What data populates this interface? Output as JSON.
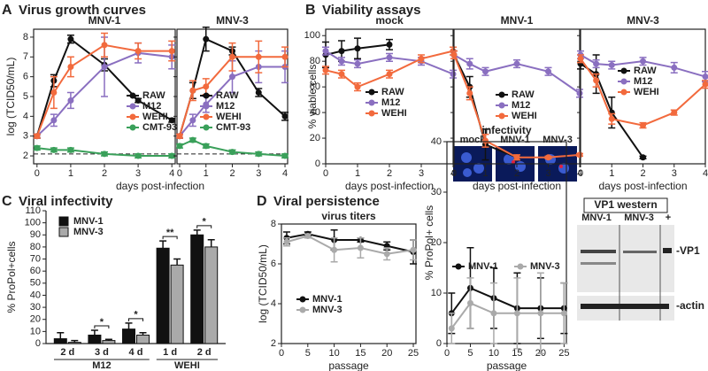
{
  "chart_data": [
    {
      "type": "line",
      "panel": "A",
      "title": "Virus growth curves",
      "subtitle": "MNV-1",
      "y_label": "log (TCID50/mL)",
      "x_label": "days post-infection",
      "x": [
        0,
        0.5,
        1,
        2,
        3,
        4
      ],
      "xlim": [
        -0.1,
        4.1
      ],
      "xticks": [
        0,
        1,
        2,
        3,
        4
      ],
      "ylim": [
        1.6,
        8.4
      ],
      "yticks": [
        2,
        3,
        4,
        5,
        6,
        7,
        8
      ],
      "hline": 2.1,
      "series": [
        {
          "name": "RAW",
          "color": "#111111",
          "values": [
            3.0,
            5.8,
            7.9,
            6.6,
            4.8,
            3.8
          ],
          "errors": [
            0.1,
            0.3,
            0.2,
            0.3,
            0.1,
            0.1
          ]
        },
        {
          "name": "M12",
          "color": "#8a6fc0",
          "values": [
            3.0,
            3.8,
            4.8,
            6.5,
            7.2,
            7.0
          ],
          "errors": [
            0.1,
            0.3,
            0.4,
            1.5,
            0.5,
            0.6
          ]
        },
        {
          "name": "WEHI",
          "color": "#f26a3d",
          "values": [
            3.0,
            5.2,
            6.5,
            7.6,
            7.3,
            7.3
          ],
          "errors": [
            0.1,
            0.8,
            0.5,
            0.6,
            0.4,
            0.5
          ]
        },
        {
          "name": "CMT-93",
          "color": "#3aa05a",
          "values": [
            2.4,
            2.3,
            2.3,
            2.1,
            2.0,
            2.0
          ],
          "errors": [
            0.1,
            0.1,
            0.1,
            0.1,
            0.1,
            0.1
          ]
        }
      ]
    },
    {
      "type": "line",
      "subtitle": "MNV-3",
      "show_ytick_labels": false,
      "x": [
        0,
        0.5,
        1,
        2,
        3,
        4
      ],
      "xlim": [
        -0.1,
        4.1
      ],
      "xticks": [
        0,
        1,
        2,
        3,
        4
      ],
      "ylim": [
        1.6,
        8.4
      ],
      "yticks": [
        2,
        3,
        4,
        5,
        6,
        7,
        8
      ],
      "hline": 2.1,
      "series": [
        {
          "name": "RAW",
          "color": "#111111",
          "values": [
            3.0,
            5.3,
            7.9,
            7.3,
            5.2,
            4.0
          ],
          "errors": [
            0.1,
            0.4,
            0.6,
            0.2,
            0.2,
            0.2
          ]
        },
        {
          "name": "M12",
          "color": "#8a6fc0",
          "values": [
            3.0,
            3.8,
            4.6,
            6.0,
            6.5,
            6.5
          ],
          "errors": [
            0.1,
            0.3,
            0.4,
            0.8,
            0.8,
            0.8
          ]
        },
        {
          "name": "WEHI",
          "color": "#f26a3d",
          "values": [
            3.0,
            5.3,
            5.5,
            7.0,
            7.0,
            7.0
          ],
          "errors": [
            0.1,
            0.5,
            0.4,
            0.7,
            0.8,
            0.5
          ]
        },
        {
          "name": "CMT-93",
          "color": "#3aa05a",
          "values": [
            2.5,
            2.8,
            2.5,
            2.2,
            2.1,
            2.0
          ],
          "errors": [
            0.1,
            0.1,
            0.1,
            0.1,
            0.1,
            0.1
          ]
        }
      ]
    },
    {
      "type": "line",
      "panel": "B",
      "title": "Viability assays",
      "subtitle": "mock",
      "y_label": "% viable cells",
      "x_label": "days post-infection",
      "x": [
        0,
        0.5,
        1,
        2,
        3,
        4
      ],
      "xlim": [
        0,
        4
      ],
      "xticks": [
        0,
        1,
        2,
        3,
        4
      ],
      "ylim": [
        0,
        105
      ],
      "yticks": [
        0,
        20,
        40,
        60,
        80,
        100
      ],
      "series": [
        {
          "name": "RAW",
          "color": "#111111",
          "values": [
            85,
            88,
            90,
            93,
            null,
            null
          ],
          "errors": [
            10,
            8,
            8,
            4,
            null,
            null
          ]
        },
        {
          "name": "M12",
          "color": "#8a6fc0",
          "values": [
            88,
            80,
            78,
            83,
            80,
            70
          ],
          "errors": [
            3,
            3,
            3,
            3,
            3,
            3
          ]
        },
        {
          "name": "WEHI",
          "color": "#f26a3d",
          "values": [
            73,
            70,
            60,
            70,
            82,
            88
          ],
          "errors": [
            3,
            3,
            3,
            3,
            3,
            3
          ]
        }
      ]
    },
    {
      "type": "line",
      "subtitle": "MNV-1",
      "x_label": "days post-infection",
      "show_ytick_labels": false,
      "x": [
        0,
        0.5,
        1,
        2,
        3,
        4
      ],
      "xlim": [
        0,
        4
      ],
      "xticks": [
        0,
        1,
        2,
        3,
        4
      ],
      "ylim": [
        0,
        105
      ],
      "yticks": [
        0,
        20,
        40,
        60,
        80,
        100
      ],
      "series": [
        {
          "name": "RAW",
          "color": "#111111",
          "values": [
            85,
            60,
            15,
            5,
            null,
            null
          ],
          "errors": [
            3,
            8,
            12,
            2,
            null,
            null
          ]
        },
        {
          "name": "M12",
          "color": "#8a6fc0",
          "values": [
            85,
            78,
            72,
            78,
            72,
            55
          ],
          "errors": [
            3,
            4,
            3,
            3,
            3,
            3
          ]
        },
        {
          "name": "WEHI",
          "color": "#f26a3d",
          "values": [
            85,
            55,
            18,
            5,
            5,
            7
          ],
          "errors": [
            3,
            5,
            5,
            2,
            1,
            1
          ]
        }
      ]
    },
    {
      "type": "line",
      "subtitle": "MNV-3",
      "x_label": "days post-infection",
      "show_ytick_labels": false,
      "x": [
        0,
        0.5,
        1,
        2,
        3,
        4
      ],
      "xlim": [
        0,
        4
      ],
      "xticks": [
        0,
        1,
        2,
        3,
        4
      ],
      "ylim": [
        0,
        105
      ],
      "yticks": [
        0,
        20,
        40,
        60,
        80,
        100
      ],
      "series": [
        {
          "name": "RAW",
          "color": "#111111",
          "values": [
            78,
            70,
            40,
            5,
            null,
            null
          ],
          "errors": [
            4,
            15,
            12,
            1,
            null,
            null
          ]
        },
        {
          "name": "M12",
          "color": "#8a6fc0",
          "values": [
            85,
            78,
            77,
            80,
            75,
            68
          ],
          "errors": [
            3,
            3,
            3,
            3,
            4,
            4
          ]
        },
        {
          "name": "WEHI",
          "color": "#f26a3d",
          "values": [
            82,
            65,
            35,
            30,
            40,
            62
          ],
          "errors": [
            3,
            5,
            4,
            2,
            2,
            3
          ]
        }
      ]
    },
    {
      "type": "bar",
      "panel": "C",
      "title": "Viral infectivity",
      "y_label": "% ProPol+cells",
      "groups": [
        {
          "name": "M12",
          "categories": [
            "2 d",
            "3 d",
            "4 d"
          ]
        },
        {
          "name": "WEHI",
          "categories": [
            "1 d",
            "2 d"
          ]
        }
      ],
      "ylim": [
        0,
        110
      ],
      "yticks": [
        0,
        10,
        20,
        30,
        40,
        50,
        60,
        70,
        80,
        90,
        100,
        110
      ],
      "series": [
        {
          "name": "MNV-1",
          "color": "#111111",
          "values": [
            4,
            7,
            12,
            79,
            90
          ],
          "errors": [
            5,
            4,
            5,
            6,
            4
          ]
        },
        {
          "name": "MNV-3",
          "color": "#aaaaaa",
          "values": [
            1,
            2.5,
            7,
            65,
            80
          ],
          "errors": [
            1.5,
            1,
            2,
            5,
            6
          ]
        }
      ],
      "significance": [
        null,
        "*",
        "*",
        "**",
        "*"
      ]
    },
    {
      "type": "line",
      "panel": "D",
      "title": "Viral persistence",
      "subtitle": "virus titers",
      "y_label": "log (TCID50/mL)",
      "x_label": "passage",
      "x": [
        1,
        5,
        10,
        15,
        20,
        25
      ],
      "xlim": [
        0,
        25.5
      ],
      "xticks": [
        0,
        5,
        10,
        15,
        20,
        25
      ],
      "ylim": [
        2,
        8
      ],
      "yticks": [
        2,
        4,
        6,
        8
      ],
      "series": [
        {
          "name": "MNV-1",
          "color": "#111111",
          "values": [
            7.3,
            7.5,
            7.2,
            7.2,
            6.9,
            6.6
          ],
          "errors": [
            0.3,
            0.1,
            0.5,
            0.1,
            0.2,
            0.6
          ]
        },
        {
          "name": "MNV-3",
          "color": "#aaaaaa",
          "values": [
            7.1,
            7.4,
            6.7,
            6.8,
            6.5,
            6.7
          ],
          "errors": [
            0.2,
            0.1,
            0.6,
            0.5,
            0.3,
            0.5
          ]
        }
      ]
    },
    {
      "type": "line",
      "subtitle": "infectivity",
      "y_label": "% ProPol+ cells",
      "x_label": "passage",
      "inset_labels": [
        "mock",
        "MNV-1",
        "MNV-3"
      ],
      "x": [
        1,
        5,
        10,
        15,
        20,
        25
      ],
      "xlim": [
        0,
        25.5
      ],
      "xticks": [
        0,
        5,
        10,
        15,
        20,
        25
      ],
      "ylim": [
        0,
        40
      ],
      "yticks": [
        0,
        10,
        20,
        30,
        40
      ],
      "series": [
        {
          "name": "MNV-1",
          "color": "#111111",
          "values": [
            6,
            11,
            9,
            7,
            7,
            7
          ],
          "errors": [
            4,
            8,
            6,
            7,
            6,
            5
          ]
        },
        {
          "name": "MNV-3",
          "color": "#aaaaaa",
          "values": [
            3,
            8,
            6,
            6,
            6,
            6
          ],
          "errors": [
            3,
            5,
            6,
            7,
            8,
            6
          ]
        }
      ]
    }
  ],
  "western_blot": {
    "title": "VP1 western",
    "lanes": [
      "MNV-1",
      "MNV-3",
      "+"
    ],
    "bands": [
      "-VP1",
      "-actin"
    ]
  }
}
